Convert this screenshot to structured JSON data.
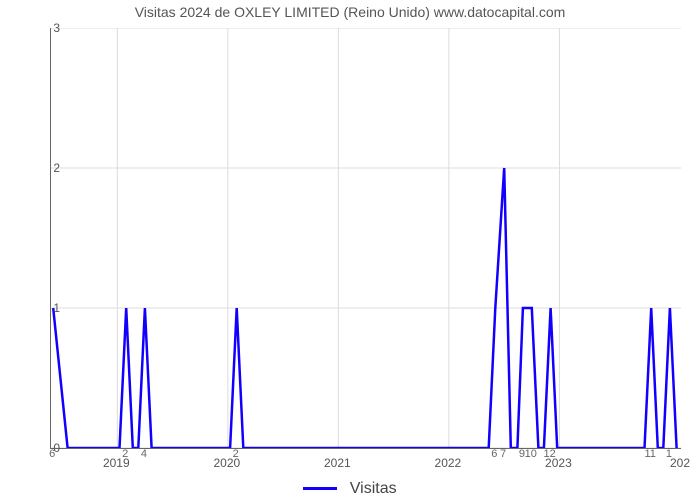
{
  "chart": {
    "type": "line",
    "title": "Visitas 2024 de OXLEY LIMITED (Reino Unido) www.datocapital.com",
    "title_fontsize": 14,
    "title_color": "#555555",
    "legend_label": "Visitas",
    "line_color": "#1200ff",
    "line_width": 2.5,
    "background_color": "#ffffff",
    "grid_color": "#dcdcdc",
    "axis_color": "#666666",
    "tick_label_color": "#555555",
    "tick_fontsize": 12,
    "y": {
      "min": 0,
      "max": 3,
      "ticks": [
        0,
        1,
        2,
        3
      ]
    },
    "x": {
      "min": 2018.4,
      "max": 2024.1,
      "year_ticks": [
        2019,
        2020,
        2021,
        2022,
        2023
      ],
      "right_edge_label": "202",
      "minor_ticks": [
        {
          "pos": 2018.42,
          "label": "6"
        },
        {
          "pos": 2019.08,
          "label": "2"
        },
        {
          "pos": 2019.25,
          "label": "4"
        },
        {
          "pos": 2020.08,
          "label": "2"
        },
        {
          "pos": 2022.42,
          "label": "6"
        },
        {
          "pos": 2022.5,
          "label": "7"
        },
        {
          "pos": 2022.67,
          "label": "9"
        },
        {
          "pos": 2022.75,
          "label": "10"
        },
        {
          "pos": 2022.92,
          "label": "12"
        },
        {
          "pos": 2023.83,
          "label": "11"
        },
        {
          "pos": 2024.0,
          "label": "1"
        }
      ]
    },
    "series": [
      {
        "x": 2018.42,
        "y": 1
      },
      {
        "x": 2018.55,
        "y": 0
      },
      {
        "x": 2019.02,
        "y": 0
      },
      {
        "x": 2019.08,
        "y": 1
      },
      {
        "x": 2019.14,
        "y": 0
      },
      {
        "x": 2019.19,
        "y": 0
      },
      {
        "x": 2019.25,
        "y": 1
      },
      {
        "x": 2019.31,
        "y": 0
      },
      {
        "x": 2020.02,
        "y": 0
      },
      {
        "x": 2020.08,
        "y": 1
      },
      {
        "x": 2020.14,
        "y": 0
      },
      {
        "x": 2022.36,
        "y": 0
      },
      {
        "x": 2022.42,
        "y": 1
      },
      {
        "x": 2022.5,
        "y": 2
      },
      {
        "x": 2022.56,
        "y": 0
      },
      {
        "x": 2022.62,
        "y": 0
      },
      {
        "x": 2022.67,
        "y": 1
      },
      {
        "x": 2022.75,
        "y": 1
      },
      {
        "x": 2022.81,
        "y": 0
      },
      {
        "x": 2022.86,
        "y": 0
      },
      {
        "x": 2022.92,
        "y": 1
      },
      {
        "x": 2022.98,
        "y": 0
      },
      {
        "x": 2023.77,
        "y": 0
      },
      {
        "x": 2023.83,
        "y": 1
      },
      {
        "x": 2023.89,
        "y": 0
      },
      {
        "x": 2023.94,
        "y": 0
      },
      {
        "x": 2024.0,
        "y": 1
      },
      {
        "x": 2024.06,
        "y": 0
      }
    ]
  }
}
